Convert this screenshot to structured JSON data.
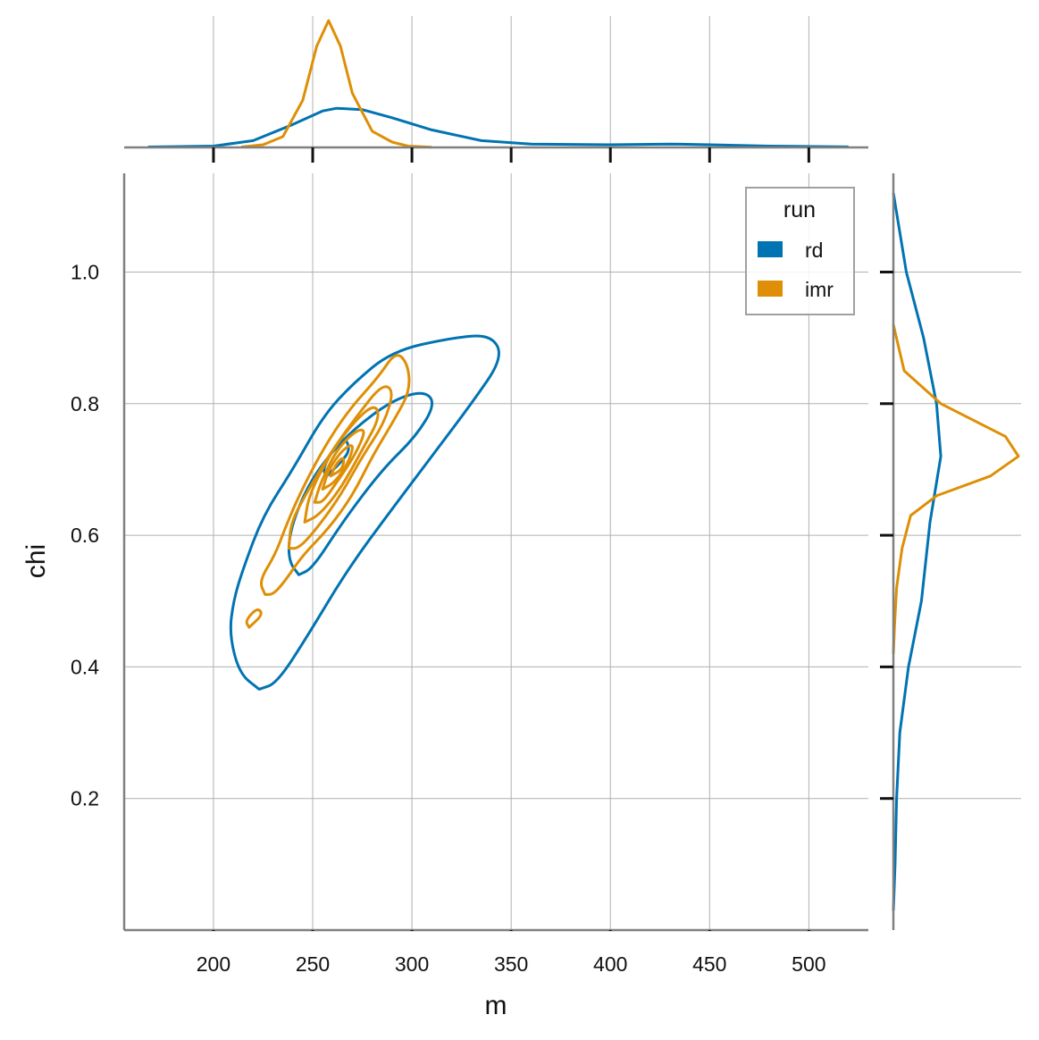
{
  "chart_data": {
    "type": "jointplot-kde",
    "xlabel": "m",
    "ylabel": "chi",
    "xlim": [
      155,
      530
    ],
    "ylim": [
      0.0,
      1.15
    ],
    "x_ticks": [
      200,
      250,
      300,
      350,
      400,
      450,
      500
    ],
    "x_tick_labels": [
      "200",
      "250",
      "300",
      "350",
      "400",
      "450",
      "500"
    ],
    "y_ticks": [
      0.2,
      0.4,
      0.6,
      0.8,
      1.0
    ],
    "y_tick_labels": [
      "0.2",
      "0.4",
      "0.6",
      "0.8",
      "1.0"
    ],
    "grid": true,
    "legend": {
      "title": "run",
      "position": "top-right",
      "entries": [
        {
          "label": "rd",
          "color": "#0173b2"
        },
        {
          "label": "imr",
          "color": "#de8f05"
        }
      ]
    },
    "series": [
      {
        "name": "rd",
        "color": "#0173b2",
        "marginal_x": [
          [
            167,
            0.003
          ],
          [
            200,
            0.01
          ],
          [
            220,
            0.05
          ],
          [
            240,
            0.17
          ],
          [
            255,
            0.27
          ],
          [
            262,
            0.29
          ],
          [
            275,
            0.28
          ],
          [
            290,
            0.22
          ],
          [
            310,
            0.13
          ],
          [
            335,
            0.05
          ],
          [
            360,
            0.025
          ],
          [
            400,
            0.02
          ],
          [
            430,
            0.025
          ],
          [
            450,
            0.02
          ],
          [
            480,
            0.01
          ],
          [
            520,
            0.004
          ]
        ],
        "marginal_y": [
          [
            1.12,
            0.0
          ],
          [
            1.0,
            0.06
          ],
          [
            0.9,
            0.14
          ],
          [
            0.8,
            0.2
          ],
          [
            0.72,
            0.22
          ],
          [
            0.62,
            0.17
          ],
          [
            0.5,
            0.13
          ],
          [
            0.4,
            0.07
          ],
          [
            0.3,
            0.03
          ],
          [
            0.2,
            0.015
          ],
          [
            0.1,
            0.008
          ],
          [
            0.03,
            0.0
          ]
        ],
        "contours": [
          [
            [
              223,
              0.366
            ],
            [
              213,
              0.39
            ],
            [
              208,
              0.45
            ],
            [
              210,
              0.5
            ],
            [
              215,
              0.55
            ],
            [
              225,
              0.63
            ],
            [
              240,
              0.7
            ],
            [
              255,
              0.78
            ],
            [
              270,
              0.83
            ],
            [
              290,
              0.88
            ],
            [
              320,
              0.9
            ],
            [
              340,
              0.905
            ],
            [
              346,
              0.87
            ],
            [
              330,
              0.8
            ],
            [
              310,
              0.72
            ],
            [
              290,
              0.64
            ],
            [
              268,
              0.55
            ],
            [
              248,
              0.45
            ],
            [
              232,
              0.375
            ],
            [
              223,
              0.366
            ]
          ],
          [
            [
              243,
              0.54
            ],
            [
              238,
              0.56
            ],
            [
              238,
              0.6
            ],
            [
              245,
              0.66
            ],
            [
              255,
              0.71
            ],
            [
              270,
              0.76
            ],
            [
              290,
              0.805
            ],
            [
              306,
              0.82
            ],
            [
              312,
              0.8
            ],
            [
              302,
              0.75
            ],
            [
              285,
              0.7
            ],
            [
              265,
              0.62
            ],
            [
              250,
              0.55
            ],
            [
              243,
              0.54
            ]
          ],
          [
            [
              257,
              0.69
            ],
            [
              255,
              0.7
            ],
            [
              260,
              0.73
            ],
            [
              266,
              0.75
            ],
            [
              269,
              0.73
            ],
            [
              264,
              0.71
            ],
            [
              257,
              0.69
            ]
          ]
        ]
      },
      {
        "name": "imr",
        "color": "#de8f05",
        "marginal_x": [
          [
            214,
            0.003
          ],
          [
            225,
            0.02
          ],
          [
            235,
            0.08
          ],
          [
            245,
            0.35
          ],
          [
            252,
            0.75
          ],
          [
            258,
            0.94
          ],
          [
            264,
            0.75
          ],
          [
            270,
            0.4
          ],
          [
            280,
            0.12
          ],
          [
            290,
            0.04
          ],
          [
            298,
            0.01
          ],
          [
            310,
            0.002
          ]
        ],
        "marginal_y": [
          [
            0.92,
            0.0
          ],
          [
            0.85,
            0.05
          ],
          [
            0.8,
            0.22
          ],
          [
            0.75,
            0.52
          ],
          [
            0.72,
            0.58
          ],
          [
            0.69,
            0.45
          ],
          [
            0.66,
            0.2
          ],
          [
            0.63,
            0.08
          ],
          [
            0.58,
            0.04
          ],
          [
            0.52,
            0.015
          ],
          [
            0.46,
            0.005
          ],
          [
            0.42,
            0.0
          ]
        ],
        "contours": [
          [
            [
              226,
              0.51
            ],
            [
              223,
              0.53
            ],
            [
              231,
              0.57
            ],
            [
              236,
              0.61
            ],
            [
              243,
              0.66
            ],
            [
              255,
              0.73
            ],
            [
              268,
              0.79
            ],
            [
              283,
              0.84
            ],
            [
              292,
              0.88
            ],
            [
              298,
              0.86
            ],
            [
              299,
              0.82
            ],
            [
              292,
              0.78
            ],
            [
              280,
              0.72
            ],
            [
              270,
              0.66
            ],
            [
              258,
              0.61
            ],
            [
              245,
              0.57
            ],
            [
              236,
              0.53
            ],
            [
              230,
              0.51
            ],
            [
              226,
              0.51
            ]
          ],
          [
            [
              218,
              0.46
            ],
            [
              216,
              0.47
            ],
            [
              222,
              0.49
            ],
            [
              225,
              0.48
            ],
            [
              218,
              0.46
            ]
          ],
          [
            [
              238,
              0.58
            ],
            [
              239,
              0.62
            ],
            [
              248,
              0.67
            ],
            [
              260,
              0.73
            ],
            [
              272,
              0.78
            ],
            [
              285,
              0.83
            ],
            [
              291,
              0.82
            ],
            [
              286,
              0.77
            ],
            [
              275,
              0.72
            ],
            [
              264,
              0.66
            ],
            [
              252,
              0.61
            ],
            [
              243,
              0.58
            ],
            [
              238,
              0.58
            ]
          ],
          [
            [
              246,
              0.62
            ],
            [
              248,
              0.66
            ],
            [
              258,
              0.72
            ],
            [
              270,
              0.77
            ],
            [
              281,
              0.8
            ],
            [
              284,
              0.78
            ],
            [
              275,
              0.73
            ],
            [
              264,
              0.67
            ],
            [
              253,
              0.63
            ],
            [
              246,
              0.62
            ]
          ],
          [
            [
              251,
              0.65
            ],
            [
              254,
              0.68
            ],
            [
              262,
              0.73
            ],
            [
              272,
              0.76
            ],
            [
              277,
              0.76
            ],
            [
              271,
              0.72
            ],
            [
              262,
              0.68
            ],
            [
              255,
              0.65
            ],
            [
              251,
              0.65
            ]
          ],
          [
            [
              255,
              0.67
            ],
            [
              258,
              0.7
            ],
            [
              265,
              0.73
            ],
            [
              271,
              0.74
            ],
            [
              268,
              0.71
            ],
            [
              261,
              0.68
            ],
            [
              255,
              0.67
            ]
          ],
          [
            [
              259,
              0.69
            ],
            [
              262,
              0.71
            ],
            [
              266,
              0.72
            ],
            [
              265,
              0.7
            ],
            [
              259,
              0.69
            ]
          ]
        ]
      }
    ]
  }
}
